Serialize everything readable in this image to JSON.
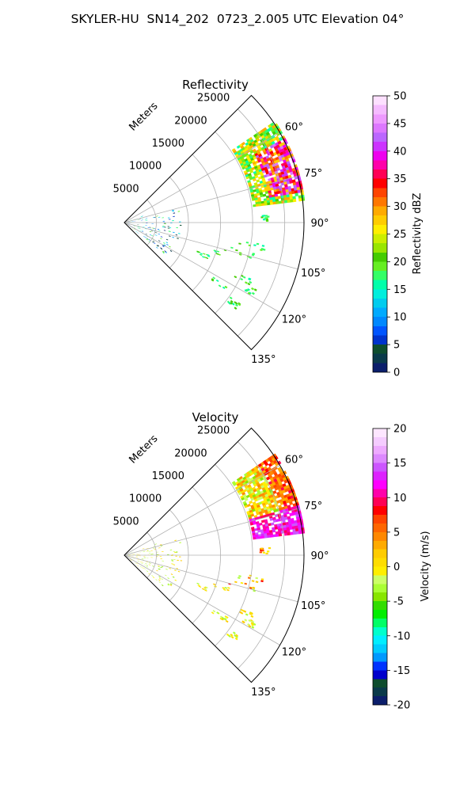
{
  "figure_title": "SKYLER-HU  SN14_202  0723_2.005 UTC Elevation 04°",
  "chart_data": [
    {
      "type": "polar-sector",
      "title": "Reflectivity",
      "range_axis_label": "Meters",
      "range_ticks": [
        5000,
        10000,
        15000,
        20000,
        25000
      ],
      "range_max": 28000,
      "azimuth_range_deg": [
        45,
        135
      ],
      "azimuth_tick_labels": [
        "60°",
        "75°",
        "90°",
        "105°",
        "120°",
        "135°"
      ],
      "azimuth_ticks_deg": [
        60,
        75,
        90,
        105,
        120,
        135
      ],
      "grid": true,
      "colorbar": {
        "label": "Reflectivity dBZ",
        "min": 0,
        "max": 50,
        "ticks": [
          0,
          5,
          10,
          15,
          20,
          25,
          30,
          35,
          40,
          45,
          50
        ]
      },
      "echo_regions": [
        {
          "az": [
            56,
            82
          ],
          "range_km": [
            20.5,
            28
          ],
          "level_dbz": "20-45",
          "description": "main storm cell"
        },
        {
          "az": [
            86,
            92
          ],
          "range_km": [
            21,
            22
          ],
          "level_dbz": "15-20"
        },
        {
          "az": [
            98,
            122
          ],
          "range_km": [
            14,
            23
          ],
          "level_dbz": "10-20"
        },
        {
          "az": [
            70,
            125
          ],
          "range_km": [
            0,
            9
          ],
          "level_dbz": "0-20"
        }
      ]
    },
    {
      "type": "polar-sector",
      "title": "Velocity",
      "range_axis_label": "Meters",
      "range_ticks": [
        5000,
        10000,
        15000,
        20000,
        25000
      ],
      "range_max": 28000,
      "azimuth_range_deg": [
        45,
        135
      ],
      "azimuth_tick_labels": [
        "60°",
        "75°",
        "90°",
        "105°",
        "120°",
        "135°"
      ],
      "azimuth_ticks_deg": [
        60,
        75,
        90,
        105,
        120,
        135
      ],
      "grid": true,
      "colorbar": {
        "label": "Velocity (m/s)",
        "min": -20,
        "max": 20,
        "ticks": [
          -20,
          -15,
          -10,
          -5,
          0,
          5,
          10,
          15,
          20
        ]
      },
      "echo_regions": [
        {
          "az": [
            56,
            82
          ],
          "range_km": [
            20.5,
            28
          ],
          "level_ms": "-5 to 15",
          "description": "main storm cell"
        },
        {
          "az": [
            98,
            122
          ],
          "range_km": [
            14,
            23
          ],
          "level_ms": "0 to 10"
        },
        {
          "az": [
            70,
            125
          ],
          "range_km": [
            0,
            9
          ],
          "level_ms": "-5 to 5"
        }
      ]
    }
  ],
  "colors": {
    "refl_scale": [
      "#0b1e6b",
      "#0a3a4a",
      "#0e4d2e",
      "#0033cc",
      "#0055ff",
      "#0088ff",
      "#00aaff",
      "#00ccee",
      "#00eedd",
      "#00ffaa",
      "#33ff66",
      "#66ee22",
      "#44cc00",
      "#99e600",
      "#ccee00",
      "#ffee00",
      "#ffcc00",
      "#ffaa00",
      "#ff7700",
      "#ff4400",
      "#ff0000",
      "#ff0055",
      "#ff00aa",
      "#ee00ee",
      "#cc33ff",
      "#bb66ff",
      "#dd77ff",
      "#ee99ff",
      "#f5bbff",
      "#fde0ff"
    ],
    "vel_scale": [
      "#0b1e6b",
      "#0a3a4a",
      "#0e4d2e",
      "#0000cc",
      "#0033ff",
      "#0099ff",
      "#00ccff",
      "#00eeff",
      "#00ffcc",
      "#00ff66",
      "#00ee00",
      "#33dd00",
      "#88e600",
      "#aaff33",
      "#ccff66",
      "#ffee00",
      "#ffdd00",
      "#ffcc00",
      "#ffaa00",
      "#ff8800",
      "#ff6600",
      "#ff4400",
      "#ff0000",
      "#ff0055",
      "#ff00aa",
      "#ff00ff",
      "#dd22ff",
      "#cc55ff",
      "#dd88ff",
      "#eeaaff",
      "#f5ccff",
      "#fde6ff"
    ]
  }
}
